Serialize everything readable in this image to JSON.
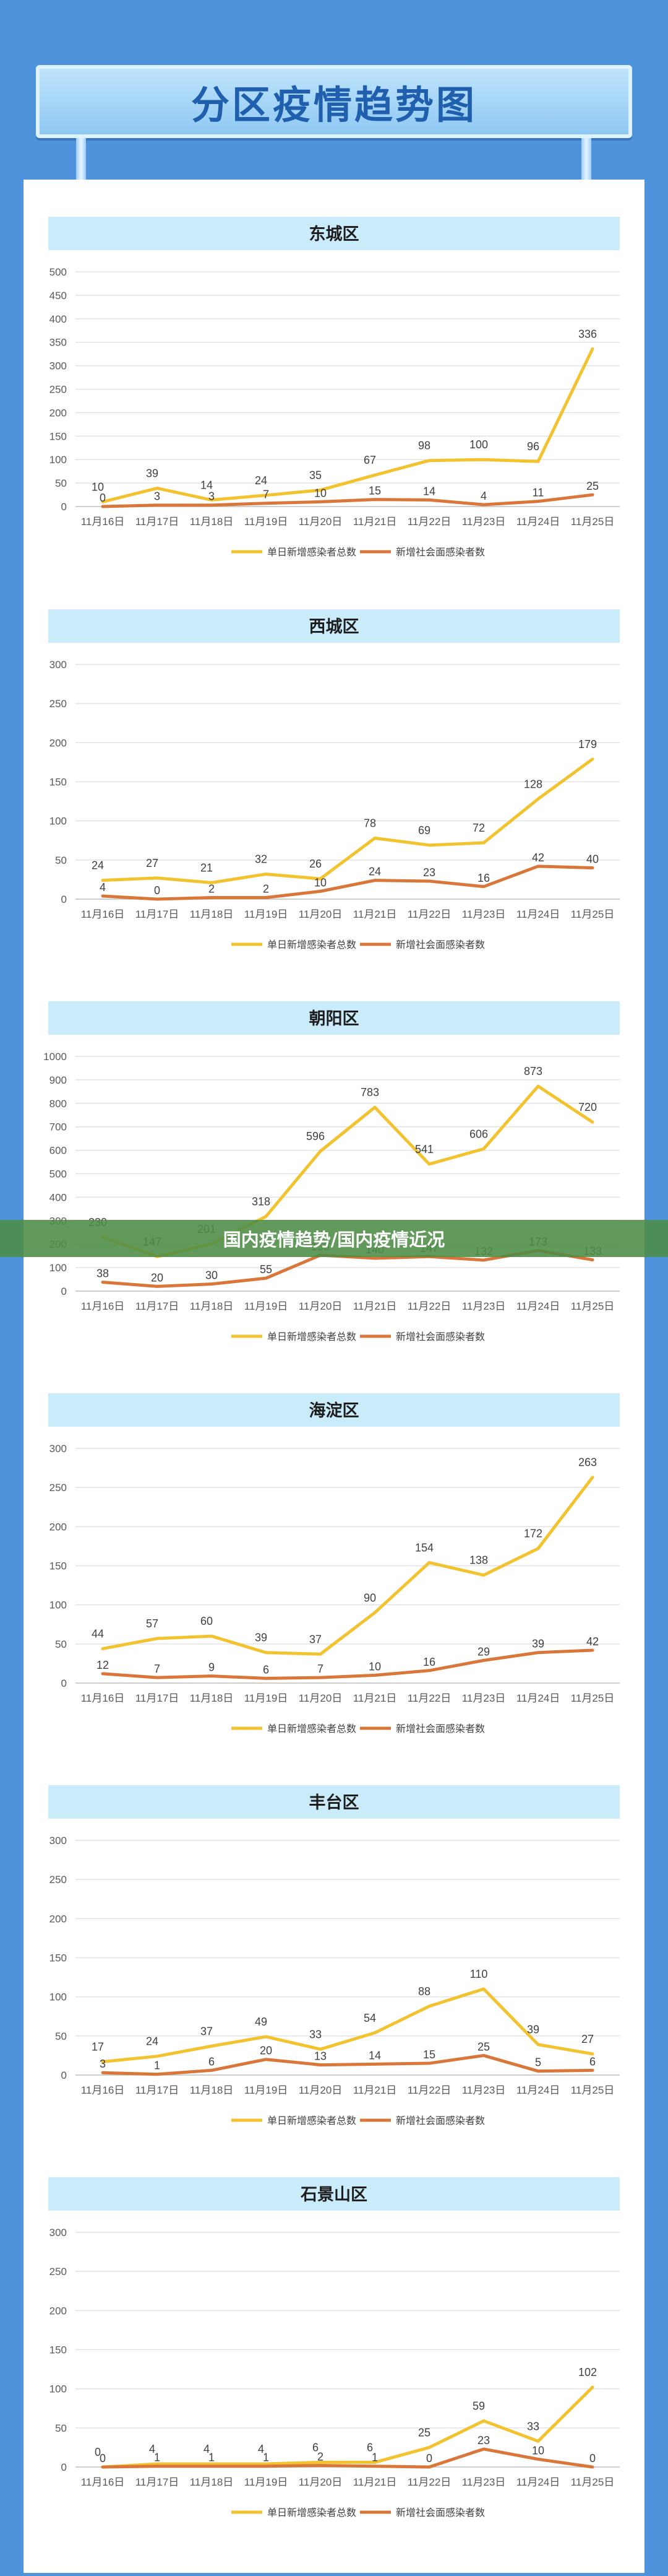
{
  "title": "分区疫情趋势图",
  "overlay_text": "国内疫情趋势/国内疫情近况",
  "legend": {
    "series1": "单日新增感染者总数",
    "series2": "新增社会面感染者数"
  },
  "colors": {
    "series1": "#f2c22f",
    "series2": "#d9773a",
    "header": "#c9ebfa",
    "header_text": "#1d1d1d"
  },
  "chart_data": [
    {
      "type": "line",
      "title": "东城区",
      "categories": [
        "11月16日",
        "11月17日",
        "11月18日",
        "11月19日",
        "11月20日",
        "11月21日",
        "11月22日",
        "11月23日",
        "11月24日",
        "11月25日"
      ],
      "ylim": [
        0,
        500
      ],
      "yticks": [
        0,
        50,
        100,
        150,
        200,
        250,
        300,
        350,
        400,
        450,
        500
      ],
      "series": [
        {
          "name": "单日新增感染者总数",
          "values": [
            10,
            39,
            14,
            24,
            35,
            67,
            98,
            100,
            96,
            336
          ]
        },
        {
          "name": "新增社会面感染者数",
          "values": [
            0,
            3,
            3,
            7,
            10,
            15,
            14,
            4,
            11,
            25
          ]
        }
      ]
    },
    {
      "type": "line",
      "title": "西城区",
      "categories": [
        "11月16日",
        "11月17日",
        "11月18日",
        "11月19日",
        "11月20日",
        "11月21日",
        "11月22日",
        "11月23日",
        "11月24日",
        "11月25日"
      ],
      "ylim": [
        0,
        300
      ],
      "yticks": [
        0,
        50,
        100,
        150,
        200,
        250,
        300
      ],
      "series": [
        {
          "name": "单日新增感染者总数",
          "values": [
            24,
            27,
            21,
            32,
            26,
            78,
            69,
            72,
            128,
            179
          ]
        },
        {
          "name": "新增社会面感染者数",
          "values": [
            4,
            0,
            2,
            2,
            10,
            24,
            23,
            16,
            42,
            40
          ]
        }
      ]
    },
    {
      "type": "line",
      "title": "朝阳区",
      "categories": [
        "11月16日",
        "11月17日",
        "11月18日",
        "11月19日",
        "11月20日",
        "11月21日",
        "11月22日",
        "11月23日",
        "11月24日",
        "11月25日"
      ],
      "ylim": [
        0,
        1000
      ],
      "yticks": [
        0,
        100,
        200,
        300,
        400,
        500,
        600,
        700,
        800,
        900,
        1000
      ],
      "series": [
        {
          "name": "单日新增感染者总数",
          "values": [
            230,
            147,
            201,
            318,
            596,
            783,
            541,
            606,
            873,
            720
          ]
        },
        {
          "name": "新增社会面感染者数",
          "values": [
            38,
            20,
            30,
            55,
            153,
            140,
            147,
            132,
            173,
            133
          ]
        }
      ]
    },
    {
      "type": "line",
      "title": "海淀区",
      "categories": [
        "11月16日",
        "11月17日",
        "11月18日",
        "11月19日",
        "11月20日",
        "11月21日",
        "11月22日",
        "11月23日",
        "11月24日",
        "11月25日"
      ],
      "ylim": [
        0,
        300
      ],
      "yticks": [
        0,
        50,
        100,
        150,
        200,
        250,
        300
      ],
      "series": [
        {
          "name": "单日新增感染者总数",
          "values": [
            44,
            57,
            60,
            39,
            37,
            90,
            154,
            138,
            172,
            263
          ]
        },
        {
          "name": "新增社会面感染者数",
          "values": [
            12,
            7,
            9,
            6,
            7,
            10,
            16,
            29,
            39,
            42
          ]
        }
      ]
    },
    {
      "type": "line",
      "title": "丰台区",
      "categories": [
        "11月16日",
        "11月17日",
        "11月18日",
        "11月19日",
        "11月20日",
        "11月21日",
        "11月22日",
        "11月23日",
        "11月24日",
        "11月25日"
      ],
      "ylim": [
        0,
        300
      ],
      "yticks": [
        0,
        50,
        100,
        150,
        200,
        250,
        300
      ],
      "series": [
        {
          "name": "单日新增感染者总数",
          "values": [
            17,
            24,
            37,
            49,
            33,
            54,
            88,
            110,
            39,
            27
          ]
        },
        {
          "name": "新增社会面感染者数",
          "values": [
            3,
            1,
            6,
            20,
            13,
            14,
            15,
            25,
            5,
            6
          ]
        }
      ]
    },
    {
      "type": "line",
      "title": "石景山区",
      "categories": [
        "11月16日",
        "11月17日",
        "11月18日",
        "11月19日",
        "11月20日",
        "11月21日",
        "11月22日",
        "11月23日",
        "11月24日",
        "11月25日"
      ],
      "ylim": [
        0,
        300
      ],
      "yticks": [
        0,
        50,
        100,
        150,
        200,
        250,
        300
      ],
      "series": [
        {
          "name": "单日新增感染者总数",
          "values": [
            0,
            4,
            4,
            4,
            6,
            6,
            25,
            59,
            33,
            102
          ]
        },
        {
          "name": "新增社会面感染者数",
          "values": [
            0,
            1,
            1,
            1,
            2,
            1,
            0,
            23,
            10,
            0
          ]
        }
      ]
    }
  ]
}
